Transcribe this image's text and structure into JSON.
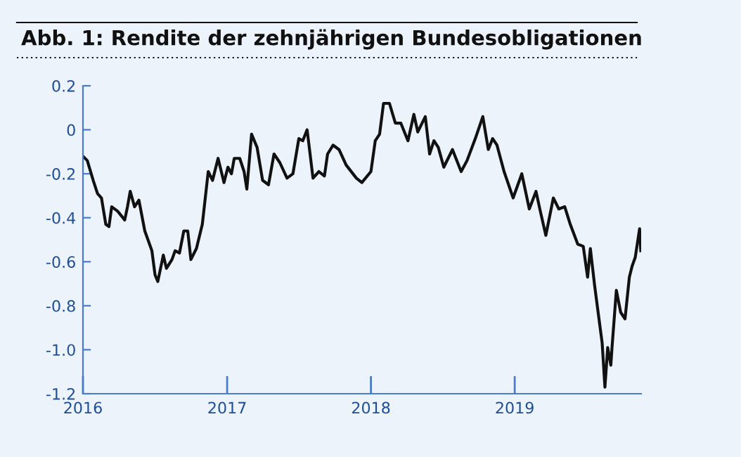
{
  "chart_data": {
    "type": "line",
    "title": "Abb. 1: Rendite der zehnjährigen Bundesobligationen",
    "x": [
      "2016-01-01",
      "2016-01-12",
      "2016-01-27",
      "2016-02-07",
      "2016-02-17",
      "2016-02-28",
      "2016-03-07",
      "2016-03-14",
      "2016-03-29",
      "2016-04-16",
      "2016-04-23",
      "2016-04-30",
      "2016-05-11",
      "2016-05-22",
      "2016-06-06",
      "2016-06-24",
      "2016-07-02",
      "2016-07-09",
      "2016-07-23",
      "2016-07-31",
      "2016-08-14",
      "2016-08-22",
      "2016-09-02",
      "2016-09-13",
      "2016-09-23",
      "2016-10-01",
      "2016-10-15",
      "2016-10-30",
      "2016-11-14",
      "2016-11-25",
      "2016-12-09",
      "2016-12-24",
      "2017-01-03",
      "2017-01-12",
      "2017-01-19",
      "2017-02-02",
      "2017-02-13",
      "2017-02-20",
      "2017-03-04",
      "2017-03-18",
      "2017-04-01",
      "2017-04-16",
      "2017-04-30",
      "2017-05-15",
      "2017-06-02",
      "2017-06-17",
      "2017-07-02",
      "2017-07-12",
      "2017-07-23",
      "2017-08-07",
      "2017-08-22",
      "2017-09-05",
      "2017-09-13",
      "2017-09-27",
      "2017-10-12",
      "2017-10-30",
      "2017-11-25",
      "2017-12-09",
      "2018-01-01",
      "2018-01-12",
      "2018-01-23",
      "2018-02-02",
      "2018-02-17",
      "2018-03-04",
      "2018-03-18",
      "2018-04-05",
      "2018-04-20",
      "2018-04-30",
      "2018-05-19",
      "2018-05-30",
      "2018-06-10",
      "2018-06-21",
      "2018-07-05",
      "2018-07-27",
      "2018-08-18",
      "2018-09-02",
      "2018-09-23",
      "2018-10-12",
      "2018-10-26",
      "2018-11-06",
      "2018-11-17",
      "2018-12-05",
      "2018-12-28",
      "2019-01-19",
      "2019-02-07",
      "2019-02-24",
      "2019-03-07",
      "2019-03-21",
      "2019-04-09",
      "2019-04-23",
      "2019-05-08",
      "2019-05-22",
      "2019-06-10",
      "2019-06-24",
      "2019-07-05",
      "2019-07-12",
      "2019-07-23",
      "2019-07-31",
      "2019-08-11",
      "2019-08-18",
      "2019-08-25",
      "2019-09-02",
      "2019-09-05",
      "2019-09-16",
      "2019-09-27",
      "2019-10-08",
      "2019-10-19",
      "2019-10-26",
      "2019-11-03",
      "2019-11-14",
      "2019-11-17"
    ],
    "series": [
      {
        "color": "#111111",
        "values": [
          -0.12,
          -0.14,
          -0.23,
          -0.29,
          -0.31,
          -0.43,
          -0.44,
          -0.35,
          -0.37,
          -0.41,
          -0.35,
          -0.28,
          -0.35,
          -0.32,
          -0.46,
          -0.55,
          -0.66,
          -0.69,
          -0.57,
          -0.63,
          -0.59,
          -0.55,
          -0.56,
          -0.46,
          -0.46,
          -0.59,
          -0.54,
          -0.43,
          -0.19,
          -0.23,
          -0.13,
          -0.24,
          -0.17,
          -0.2,
          -0.13,
          -0.13,
          -0.19,
          -0.27,
          -0.02,
          -0.08,
          -0.23,
          -0.25,
          -0.11,
          -0.15,
          -0.22,
          -0.2,
          -0.04,
          -0.05,
          0.0,
          -0.22,
          -0.19,
          -0.21,
          -0.11,
          -0.07,
          -0.09,
          -0.16,
          -0.22,
          -0.24,
          -0.19,
          -0.05,
          -0.02,
          0.12,
          0.12,
          0.03,
          0.03,
          -0.05,
          0.07,
          -0.01,
          0.06,
          -0.11,
          -0.05,
          -0.08,
          -0.17,
          -0.09,
          -0.19,
          -0.14,
          -0.04,
          0.06,
          -0.09,
          -0.04,
          -0.07,
          -0.19,
          -0.31,
          -0.2,
          -0.36,
          -0.28,
          -0.37,
          -0.48,
          -0.31,
          -0.36,
          -0.35,
          -0.43,
          -0.52,
          -0.53,
          -0.67,
          -0.54,
          -0.71,
          -0.82,
          -0.97,
          -1.17,
          -0.99,
          -1.07,
          -0.99,
          -0.73,
          -0.83,
          -0.86,
          -0.67,
          -0.62,
          -0.58,
          -0.45,
          -0.55
        ]
      }
    ],
    "xlim": [
      "2016-01-01",
      "2019-11-18"
    ],
    "xticks": [
      "2016",
      "2017",
      "2018",
      "2019"
    ],
    "ylim": [
      -1.2,
      0.2
    ],
    "yticks": [
      0.2,
      0,
      -0.2,
      -0.4,
      -0.6,
      -0.8,
      {
        "value": -1.0,
        "label": "-1.0"
      },
      -1.2
    ],
    "grid": false,
    "legend": false,
    "marker": "none",
    "line_style": "solid"
  }
}
